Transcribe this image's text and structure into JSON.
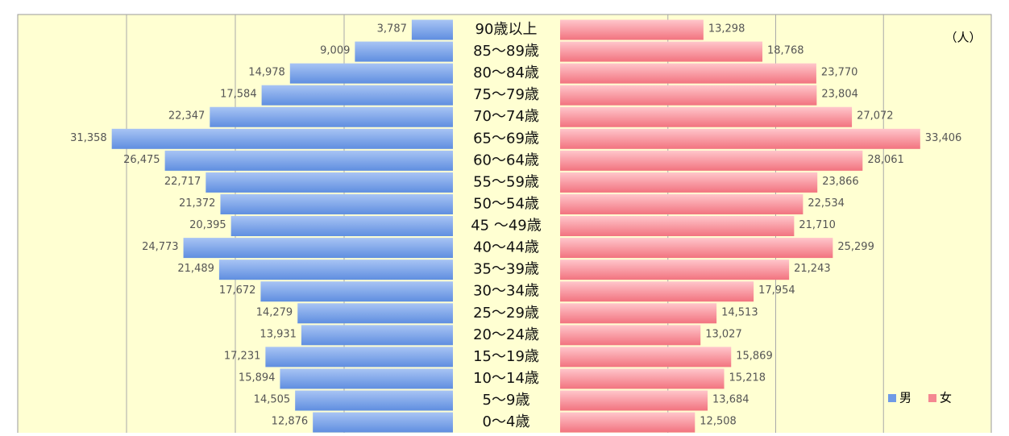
{
  "chart_data": {
    "type": "pyramid",
    "unit": "（人）",
    "categories": [
      "90歳以上",
      "85～89歳",
      "80～84歳",
      "75～79歳",
      "70～74歳",
      "65～69歳",
      "60～64歳",
      "55～59歳",
      "50～54歳",
      "45 ～49歳",
      "40～44歳",
      "35～39歳",
      "30～34歳",
      "25～29歳",
      "20～24歳",
      "15～19歳",
      "10～14歳",
      "5～9歳",
      "0～4歳"
    ],
    "series": [
      {
        "name": "男",
        "color": "#6f9ae6",
        "side": "left",
        "values": [
          3787,
          9009,
          14978,
          17584,
          22347,
          31358,
          26475,
          22717,
          21372,
          20395,
          24773,
          21489,
          17672,
          14279,
          13931,
          17231,
          15894,
          14505,
          12876
        ],
        "value_labels": [
          "3,787",
          "9,009",
          "14,978",
          "17,584",
          "22,347",
          "31,358",
          "26,475",
          "22,717",
          "21,372",
          "20,395",
          "24,773",
          "21,489",
          "17,672",
          "14,279",
          "13,931",
          "17,231",
          "15,894",
          "14,505",
          "12,876"
        ]
      },
      {
        "name": "女",
        "color": "#f48791",
        "side": "right",
        "values": [
          13298,
          18768,
          23770,
          23804,
          27072,
          33406,
          28061,
          23866,
          22534,
          21710,
          25299,
          21243,
          17954,
          14513,
          13027,
          15869,
          15218,
          13684,
          12508
        ],
        "value_labels": [
          "13,298",
          "18,768",
          "23,770",
          "23,804",
          "27,072",
          "33,406",
          "28,061",
          "23,866",
          "22,534",
          "21,710",
          "25,299",
          "21,243",
          "17,954",
          "14,513",
          "13,027",
          "15,869",
          "15,218",
          "13,684",
          "12,508"
        ]
      }
    ],
    "xlim": [
      0,
      40000
    ],
    "xticks": [
      10000,
      20000,
      30000
    ],
    "grid": true,
    "legend": "lower right"
  }
}
